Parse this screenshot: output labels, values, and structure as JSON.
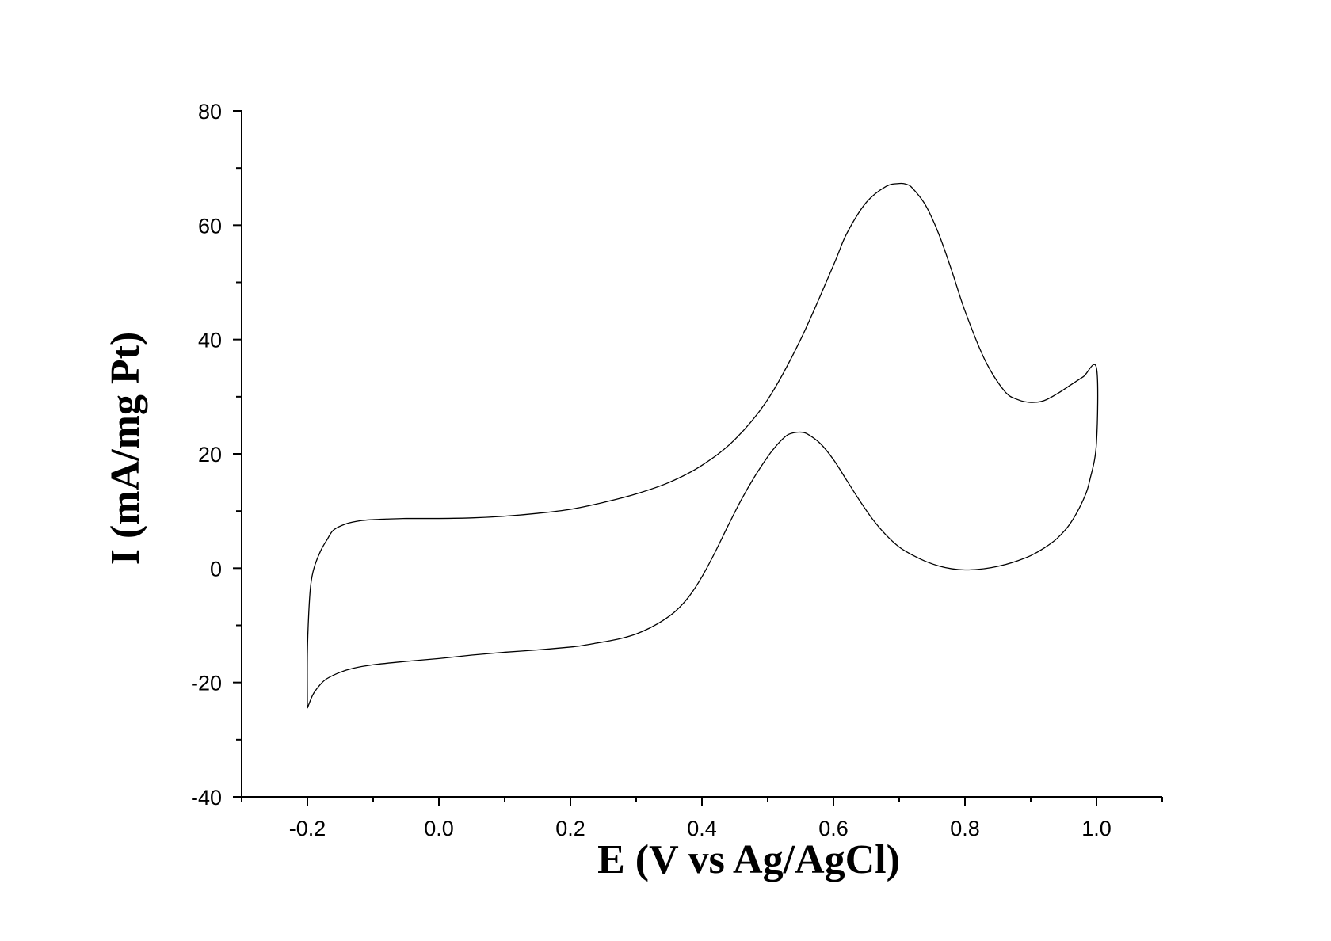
{
  "chart_data": {
    "type": "line",
    "title": "",
    "xlabel": "E (V vs Ag/AgCl)",
    "ylabel": "I (mA/mg Pt)",
    "xlim": [
      -0.3,
      1.1
    ],
    "ylim": [
      -40,
      80
    ],
    "xticks": [
      -0.2,
      0.0,
      0.2,
      0.4,
      0.6,
      0.8,
      1.0
    ],
    "xtick_labels": [
      "-0.2",
      "0.0",
      "0.2",
      "0.4",
      "0.6",
      "0.8",
      "1.0"
    ],
    "yticks": [
      -40,
      -20,
      0,
      20,
      40,
      60,
      80
    ],
    "ytick_labels": [
      "-40",
      "-20",
      "0",
      "20",
      "40",
      "60",
      "80"
    ],
    "x_minor_step": 0.1,
    "y_minor_step": 10,
    "grid": false,
    "legend": "none",
    "line_color": "#000000",
    "series": [
      {
        "x": [
          -0.2,
          -0.2,
          -0.198,
          -0.195,
          -0.19,
          -0.18,
          -0.17,
          -0.16,
          -0.14,
          -0.12,
          -0.1,
          -0.08,
          -0.05,
          0.0,
          0.05,
          0.1,
          0.15,
          0.2,
          0.25,
          0.3,
          0.35,
          0.4,
          0.45,
          0.5,
          0.55,
          0.6,
          0.62,
          0.65,
          0.68,
          0.7,
          0.71,
          0.72,
          0.74,
          0.76,
          0.78,
          0.8,
          0.83,
          0.86,
          0.88,
          0.9,
          0.92,
          0.94,
          0.96,
          0.98,
          1.0,
          1.0,
          0.99,
          0.98,
          0.96,
          0.94,
          0.92,
          0.9,
          0.88,
          0.86,
          0.84,
          0.82,
          0.8,
          0.78,
          0.76,
          0.74,
          0.72,
          0.7,
          0.68,
          0.66,
          0.64,
          0.62,
          0.6,
          0.58,
          0.56,
          0.55,
          0.54,
          0.53,
          0.52,
          0.51,
          0.5,
          0.48,
          0.46,
          0.44,
          0.42,
          0.4,
          0.38,
          0.36,
          0.34,
          0.32,
          0.3,
          0.28,
          0.26,
          0.24,
          0.22,
          0.2,
          0.15,
          0.1,
          0.05,
          0.0,
          -0.05,
          -0.1,
          -0.13,
          -0.15,
          -0.17,
          -0.18,
          -0.19,
          -0.195,
          -0.2
        ],
        "y": [
          -24.5,
          -15,
          -8,
          -3,
          0,
          3,
          5,
          6.7,
          7.8,
          8.3,
          8.5,
          8.6,
          8.7,
          8.7,
          8.8,
          9.1,
          9.6,
          10.3,
          11.5,
          13.0,
          15.0,
          18.0,
          22.5,
          29.5,
          40.0,
          53.0,
          58.5,
          64.0,
          66.8,
          67.3,
          67.2,
          66.5,
          63.5,
          58.5,
          52.0,
          45.0,
          36.5,
          31.0,
          29.5,
          29.0,
          29.3,
          30.5,
          32.0,
          33.5,
          35.0,
          22.0,
          15.5,
          12.0,
          7.8,
          5.2,
          3.5,
          2.2,
          1.3,
          0.6,
          0.1,
          -0.2,
          -0.3,
          -0.1,
          0.4,
          1.2,
          2.3,
          3.7,
          5.8,
          8.5,
          11.8,
          15.4,
          19.0,
          21.8,
          23.5,
          23.8,
          23.7,
          23.3,
          22.3,
          21.0,
          19.5,
          16.0,
          12.0,
          7.5,
          2.8,
          -1.5,
          -5.0,
          -7.5,
          -9.2,
          -10.5,
          -11.5,
          -12.2,
          -12.7,
          -13.1,
          -13.5,
          -13.8,
          -14.3,
          -14.7,
          -15.2,
          -15.8,
          -16.3,
          -16.9,
          -17.5,
          -18.2,
          -19.3,
          -20.3,
          -21.8,
          -23.0,
          -24.5
        ]
      }
    ]
  }
}
